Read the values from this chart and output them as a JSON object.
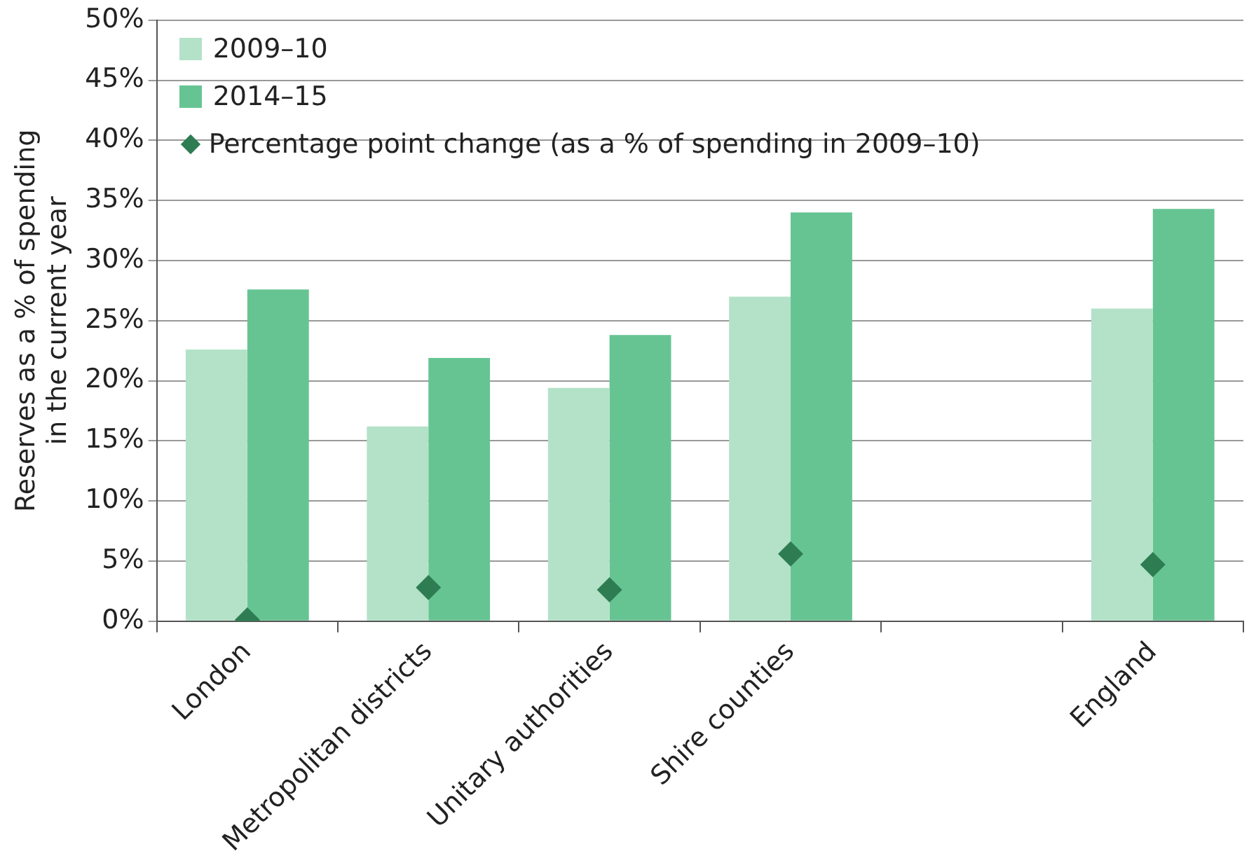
{
  "chart_data": {
    "type": "bar",
    "ylabel": "Reserves as a % of spending\nin the current year",
    "categories": [
      "London",
      "Metropolitan districts",
      "Unitary authorities",
      "Shire counties",
      null,
      "England"
    ],
    "series": [
      {
        "name": "2009–10",
        "color": "#b3e2c8",
        "values": [
          22.6,
          16.2,
          19.4,
          27.0,
          null,
          26.0
        ]
      },
      {
        "name": "2014–15",
        "color": "#66c493",
        "values": [
          27.6,
          21.9,
          23.8,
          34.0,
          null,
          34.3
        ]
      },
      {
        "name": "Percentage point change (as a % of spending in 2009–10)",
        "type": "scatter",
        "color": "#2e7d52",
        "marker": "diamond",
        "x": [
          "London",
          "Metropolitan districts",
          "Unitary authorities",
          "Shire counties",
          "England"
        ],
        "values": [
          0.1,
          2.8,
          2.6,
          5.6,
          4.7
        ]
      }
    ],
    "ylim": [
      0,
      50
    ],
    "yticks": [
      {
        "value": 0,
        "label": "0%"
      },
      {
        "value": 5,
        "label": "5%"
      },
      {
        "value": 10,
        "label": "10%"
      },
      {
        "value": 15,
        "label": "15%"
      },
      {
        "value": 20,
        "label": "20%"
      },
      {
        "value": 25,
        "label": "25%"
      },
      {
        "value": 30,
        "label": "30%"
      },
      {
        "value": 35,
        "label": "35%"
      },
      {
        "value": 40,
        "label": "40%"
      },
      {
        "value": 45,
        "label": "45%"
      },
      {
        "value": 50,
        "label": "50%"
      }
    ],
    "grid": "y",
    "legend": "top left"
  }
}
